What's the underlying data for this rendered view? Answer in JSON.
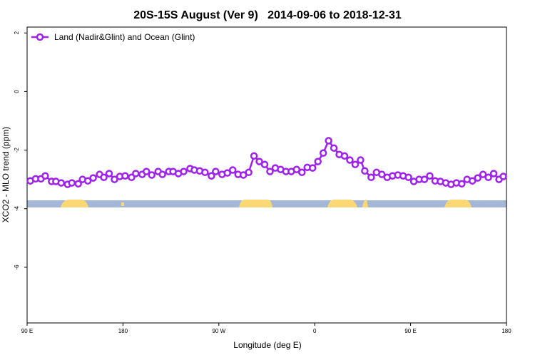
{
  "chart_data": {
    "type": "line",
    "title": "20S-15S August (Ver 9)   2014-09-06 to 2018-12-31",
    "xlabel": "Longitude (deg E)",
    "ylabel": "XCO2 - MLO trend (ppm)",
    "x": [
      93,
      98,
      103,
      107,
      113,
      117,
      122,
      128,
      132,
      138,
      142,
      147,
      152,
      158,
      162,
      167,
      172,
      177,
      182,
      188,
      192,
      198,
      202,
      207,
      213,
      217,
      223,
      227,
      232,
      237,
      243,
      247,
      252,
      257,
      263,
      267,
      273,
      278,
      283,
      288,
      293,
      298,
      303,
      308,
      313,
      318,
      323,
      328,
      333,
      338,
      343,
      348,
      353,
      358,
      363,
      368,
      373,
      378,
      383,
      388,
      393,
      398,
      403,
      407,
      413,
      418,
      423,
      428,
      433,
      438,
      443,
      448,
      453,
      458,
      463,
      468,
      473,
      478,
      483,
      488,
      493,
      498,
      503,
      508,
      513,
      518,
      523,
      528,
      533,
      537
    ],
    "series": [
      {
        "name": "Land (Nadir&Glint) and Ocean (Glint)",
        "color": "#a020f0",
        "values": [
          -3.05,
          -2.98,
          -2.98,
          -2.88,
          -3.07,
          -3.07,
          -3.12,
          -3.17,
          -3.12,
          -3.15,
          -3.0,
          -3.05,
          -2.95,
          -2.83,
          -2.93,
          -2.8,
          -3.0,
          -2.9,
          -2.88,
          -2.93,
          -2.8,
          -2.83,
          -2.73,
          -2.85,
          -2.73,
          -2.83,
          -2.73,
          -2.73,
          -2.8,
          -2.73,
          -2.63,
          -2.68,
          -2.71,
          -2.76,
          -2.88,
          -2.73,
          -2.83,
          -2.78,
          -2.68,
          -2.83,
          -2.85,
          -2.76,
          -2.2,
          -2.39,
          -2.49,
          -2.73,
          -2.61,
          -2.66,
          -2.73,
          -2.73,
          -2.66,
          -2.76,
          -2.59,
          -2.61,
          -2.39,
          -2.1,
          -1.68,
          -1.93,
          -2.15,
          -2.2,
          -2.34,
          -2.49,
          -2.34,
          -2.71,
          -2.93,
          -2.76,
          -2.83,
          -2.93,
          -2.88,
          -2.85,
          -2.88,
          -2.93,
          -3.07,
          -3.0,
          -3.0,
          -2.88,
          -3.05,
          -3.07,
          -3.12,
          -3.17,
          -3.12,
          -3.15,
          -3.0,
          -3.05,
          -2.95,
          -2.83,
          -2.93,
          -2.8,
          -3.0,
          -2.9
        ]
      }
    ],
    "xlim": [
      90,
      540
    ],
    "xticks": [
      {
        "value": 90,
        "label": "90 E"
      },
      {
        "value": 180,
        "label": "180"
      },
      {
        "value": 270,
        "label": "90 W"
      },
      {
        "value": 360,
        "label": "0"
      },
      {
        "value": 450,
        "label": "90 E"
      },
      {
        "value": 540,
        "label": "180"
      }
    ],
    "ylim": [
      -7.9,
      2.2
    ],
    "yticks": [
      2,
      0,
      -2,
      -4,
      -6
    ],
    "legend": "top-left"
  }
}
